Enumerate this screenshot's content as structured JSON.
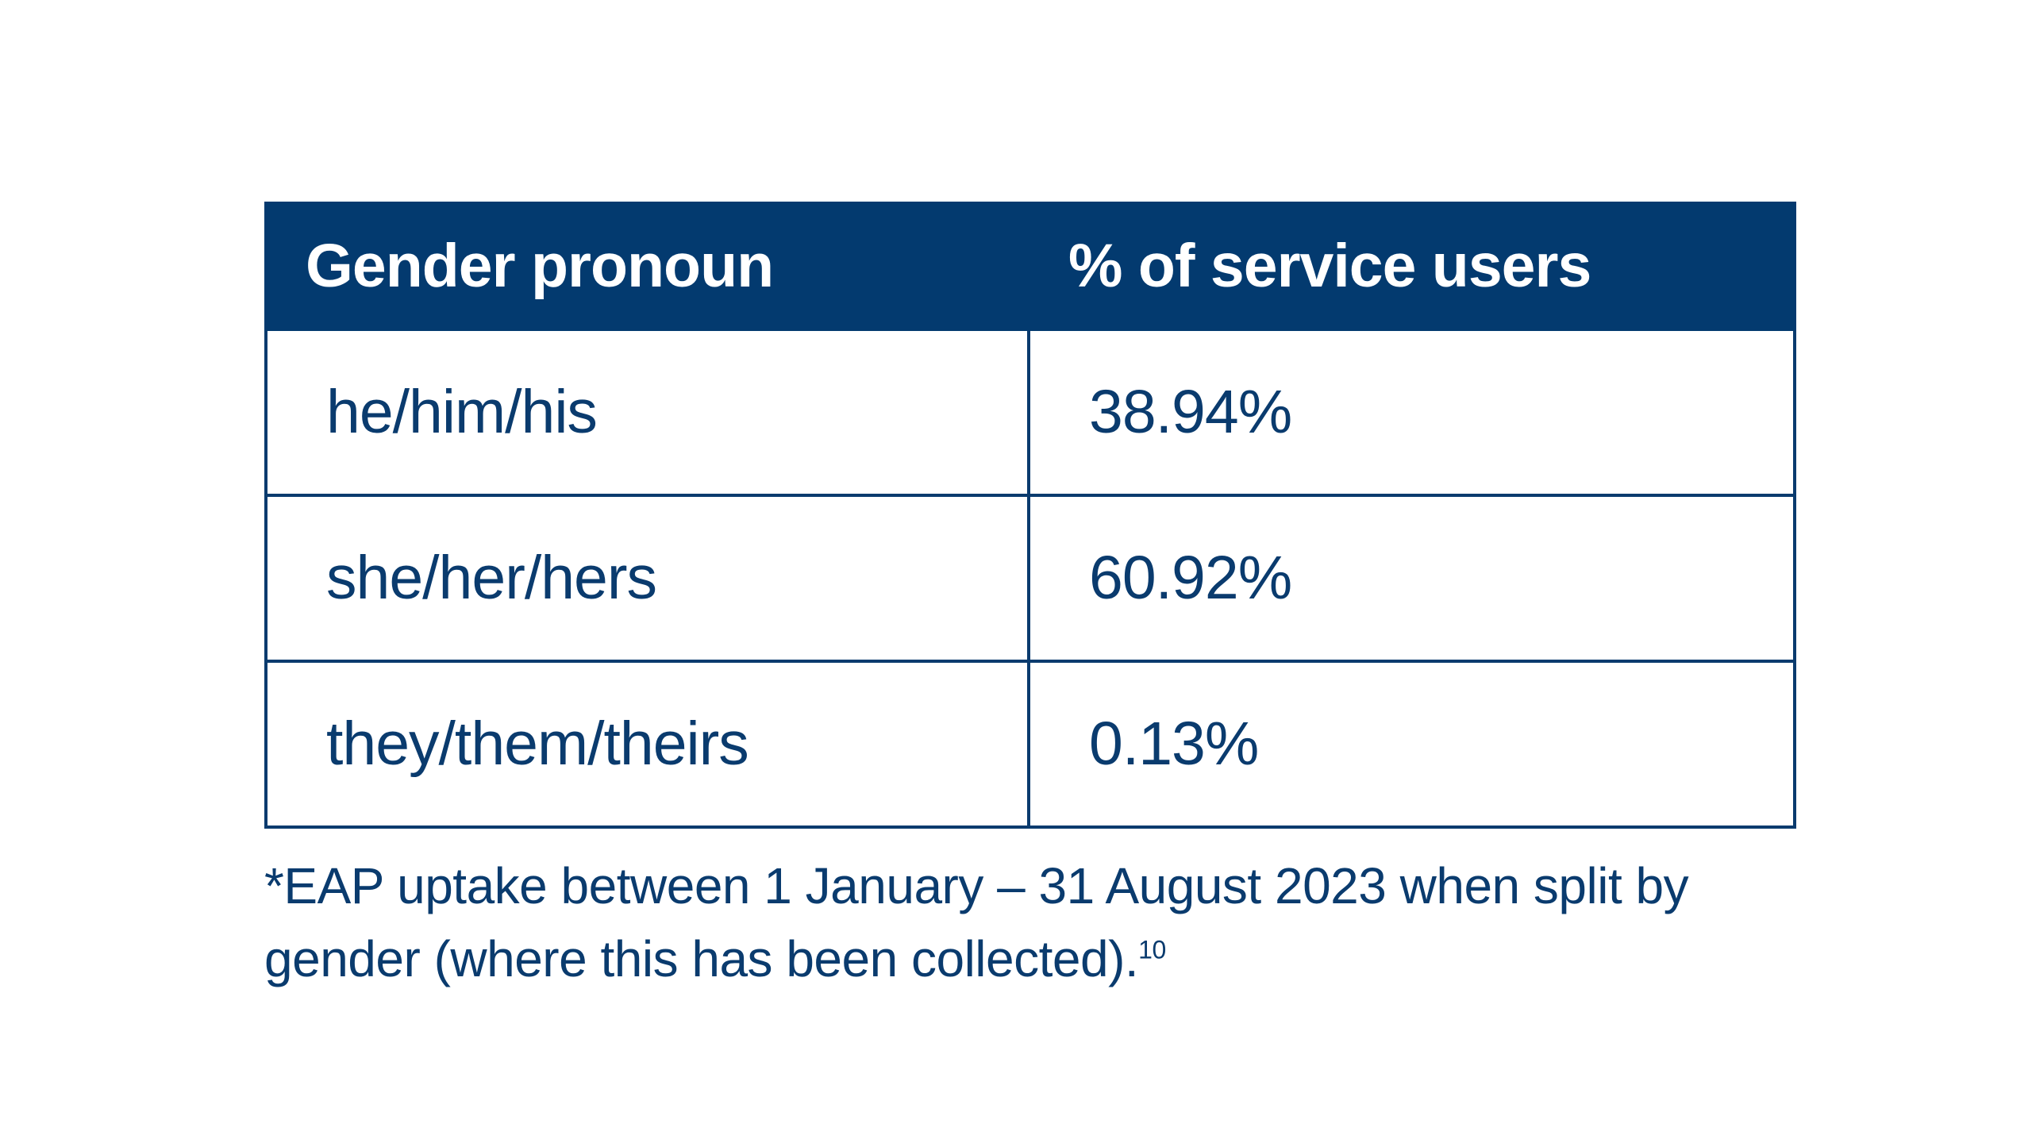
{
  "chart_data": {
    "type": "table",
    "columns": [
      "Gender pronoun",
      "% of service users"
    ],
    "rows": [
      {
        "pronoun": "he/him/his",
        "value_label": "38.94%",
        "value": 38.94
      },
      {
        "pronoun": "she/her/hers",
        "value_label": "60.92%",
        "value": 60.92
      },
      {
        "pronoun": "they/them/theirs",
        "value_label": "0.13%",
        "value": 0.13
      }
    ]
  },
  "footnote": {
    "text": "*EAP uptake between 1 January – 31 August 2023 when split by gender (where this has been collected).",
    "ref": "10"
  },
  "colors": {
    "header_bg": "#033a6f",
    "text": "#0a3b6e",
    "border": "#0a3b6e"
  }
}
